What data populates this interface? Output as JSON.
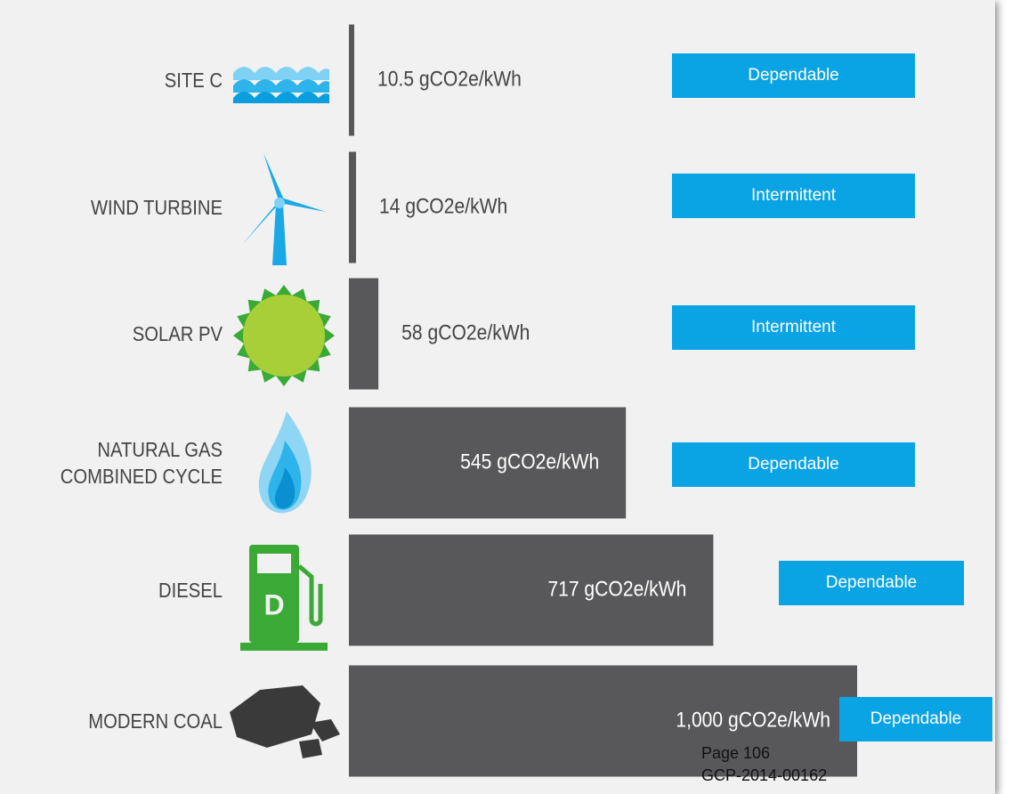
{
  "chart_data": {
    "type": "bar",
    "categories": [
      "SITE C",
      "WIND TURBINE",
      "SOLAR PV",
      "NATURAL GAS\nCOMBINED CYCLE",
      "DIESEL",
      "MODERN COAL"
    ],
    "values": [
      10.5,
      14,
      58,
      545,
      717,
      1000
    ],
    "value_labels": [
      "10.5 gCO2e/kWh",
      "14 gCO2e/kWh",
      "58 gCO2e/kWh",
      "545 gCO2e/kWh",
      "717 gCO2e/kWh",
      "1,000 gCO2e/kWh"
    ],
    "color": "#58585a",
    "xlim": [
      0,
      1000
    ],
    "annotations": [
      "Dependable",
      "Intermittent",
      "Intermittent",
      "Dependable",
      "Dependable",
      "Dependable"
    ],
    "annotation_color": "#0aa3e4"
  },
  "footer": {
    "page": "Page 106",
    "reference": "GCP-2014-00162"
  }
}
